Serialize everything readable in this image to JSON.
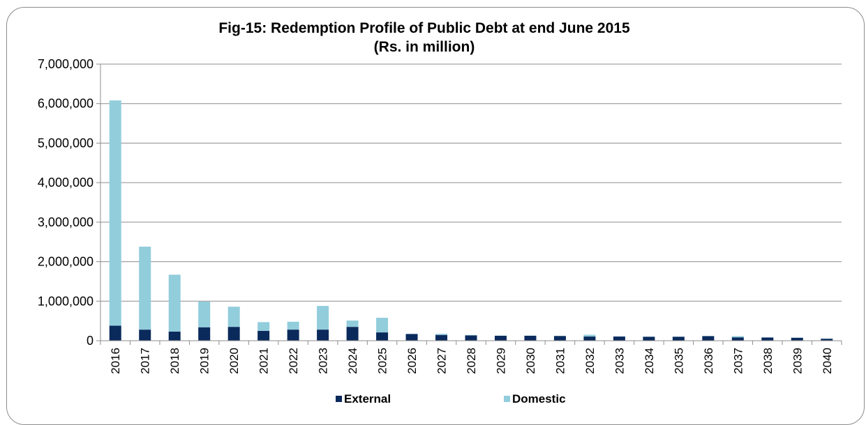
{
  "chart_data": {
    "type": "bar",
    "stacked": true,
    "title": "Fig-15: Redemption Profile of Public Debt at end June 2015",
    "subtitle": "(Rs. in million)",
    "xlabel": "",
    "ylabel": "",
    "ylim": [
      0,
      7000000
    ],
    "yticks": [
      0,
      1000000,
      2000000,
      3000000,
      4000000,
      5000000,
      6000000,
      7000000
    ],
    "ytick_labels": [
      "0",
      "1,000,000",
      "2,000,000",
      "3,000,000",
      "4,000,000",
      "5,000,000",
      "6,000,000",
      "7,000,000"
    ],
    "grid": true,
    "legend_position": "bottom",
    "categories": [
      "2016",
      "2017",
      "2018",
      "2019",
      "2020",
      "2021",
      "2022",
      "2023",
      "2024",
      "2025",
      "2026",
      "2027",
      "2028",
      "2029",
      "2030",
      "2031",
      "2032",
      "2033",
      "2034",
      "2035",
      "2036",
      "2037",
      "2038",
      "2039",
      "2040"
    ],
    "series": [
      {
        "name": "External",
        "color": "#0b2a5c",
        "values": [
          380000,
          280000,
          230000,
          340000,
          350000,
          250000,
          280000,
          280000,
          350000,
          210000,
          170000,
          145000,
          135000,
          125000,
          125000,
          120000,
          105000,
          105000,
          100000,
          100000,
          115000,
          85000,
          80000,
          75000,
          50000
        ]
      },
      {
        "name": "Domestic",
        "color": "#92cddc",
        "values": [
          5700000,
          2100000,
          1440000,
          650000,
          510000,
          220000,
          200000,
          600000,
          160000,
          370000,
          5000,
          30000,
          10000,
          5000,
          5000,
          5000,
          45000,
          5000,
          5000,
          5000,
          5000,
          30000,
          5000,
          5000,
          5000
        ]
      }
    ]
  }
}
